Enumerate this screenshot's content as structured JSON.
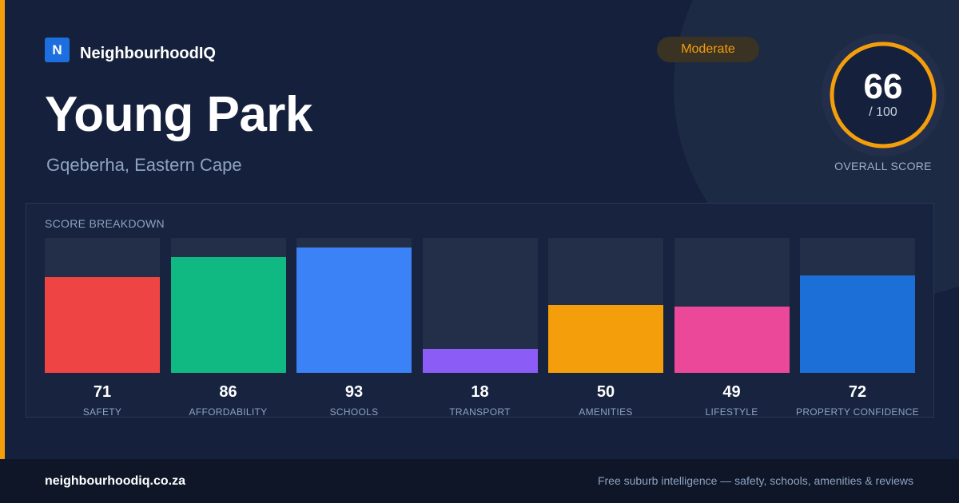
{
  "brand": {
    "logo_letter": "N",
    "name": "NeighbourhoodIQ"
  },
  "suburb": {
    "name": "Young Park",
    "location": "Gqeberha, Eastern Cape"
  },
  "rating_badge": "Moderate",
  "overall": {
    "score": "66",
    "max": "/ 100",
    "caption": "OVERALL SCORE",
    "fraction": 0.66
  },
  "colors": {
    "accent": "#f59e0b",
    "background": "#15213c",
    "track": "#232f48"
  },
  "breakdown": {
    "title": "SCORE BREAKDOWN",
    "categories": [
      {
        "label": "SAFETY",
        "value": "71",
        "score": 71,
        "color": "#ef4444"
      },
      {
        "label": "AFFORDABILITY",
        "value": "86",
        "score": 86,
        "color": "#10b981"
      },
      {
        "label": "SCHOOLS",
        "value": "93",
        "score": 93,
        "color": "#3b82f6"
      },
      {
        "label": "TRANSPORT",
        "value": "18",
        "score": 18,
        "color": "#8b5cf6"
      },
      {
        "label": "AMENITIES",
        "value": "50",
        "score": 50,
        "color": "#f59e0b"
      },
      {
        "label": "LIFESTYLE",
        "value": "49",
        "score": 49,
        "color": "#ec4899"
      },
      {
        "label": "PROPERTY CONFIDENCE",
        "value": "72",
        "score": 72,
        "color": "#1d6fd8"
      }
    ]
  },
  "footer": {
    "url": "neighbourhoodiq.co.za",
    "tagline": "Free suburb intelligence — safety, schools, amenities & reviews"
  }
}
